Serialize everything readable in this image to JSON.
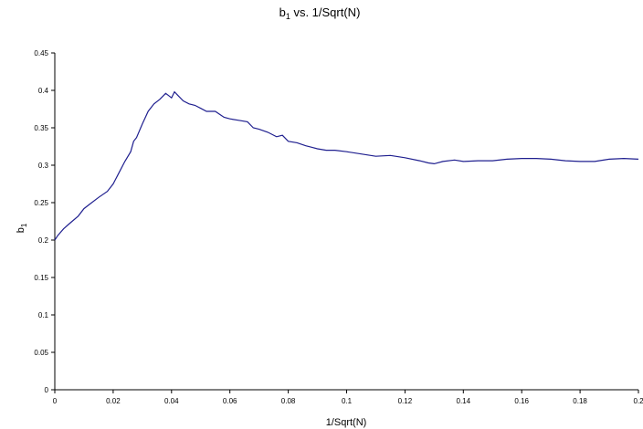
{
  "chart_data": {
    "type": "line",
    "title": "b",
    "title_sub": "1",
    "title_rest": " vs. 1/Sqrt(N)",
    "xlabel": "1/Sqrt(N)",
    "ylabel": "b",
    "ylabel_sub": "1",
    "xlim": [
      0,
      0.2
    ],
    "ylim": [
      0,
      0.45
    ],
    "xticks": [
      "0",
      "0.02",
      "0.04",
      "0.06",
      "0.08",
      "0.1",
      "0.12",
      "0.14",
      "0.16",
      "0.18",
      "0.2"
    ],
    "yticks": [
      "0",
      "0.05",
      "0.1",
      "0.15",
      "0.2",
      "0.25",
      "0.3",
      "0.35",
      "0.4",
      "0.45"
    ],
    "grid": false,
    "line_color": "#1f1f8f",
    "series": [
      {
        "x": [
          0,
          0.001,
          0.003,
          0.005,
          0.008,
          0.01,
          0.012,
          0.015,
          0.018,
          0.02,
          0.022,
          0.024,
          0.026,
          0.027,
          0.028,
          0.03,
          0.032,
          0.034,
          0.036,
          0.038,
          0.039,
          0.04,
          0.041,
          0.042,
          0.044,
          0.046,
          0.048,
          0.05,
          0.052,
          0.055,
          0.058,
          0.06,
          0.063,
          0.066,
          0.068,
          0.07,
          0.073,
          0.076,
          0.078,
          0.08,
          0.083,
          0.086,
          0.088,
          0.09,
          0.093,
          0.096,
          0.1,
          0.105,
          0.11,
          0.115,
          0.12,
          0.125,
          0.128,
          0.13,
          0.133,
          0.137,
          0.14,
          0.145,
          0.15,
          0.155,
          0.16,
          0.165,
          0.17,
          0.175,
          0.18,
          0.185,
          0.19,
          0.195,
          0.2
        ],
        "y": [
          0.2,
          0.206,
          0.215,
          0.222,
          0.232,
          0.242,
          0.248,
          0.257,
          0.265,
          0.275,
          0.29,
          0.305,
          0.318,
          0.332,
          0.337,
          0.355,
          0.372,
          0.382,
          0.388,
          0.396,
          0.393,
          0.39,
          0.398,
          0.394,
          0.386,
          0.382,
          0.38,
          0.376,
          0.372,
          0.372,
          0.364,
          0.362,
          0.36,
          0.358,
          0.35,
          0.348,
          0.344,
          0.338,
          0.34,
          0.332,
          0.33,
          0.326,
          0.324,
          0.322,
          0.32,
          0.32,
          0.318,
          0.315,
          0.312,
          0.313,
          0.31,
          0.306,
          0.303,
          0.302,
          0.305,
          0.307,
          0.305,
          0.306,
          0.306,
          0.308,
          0.309,
          0.309,
          0.308,
          0.306,
          0.305,
          0.305,
          0.308,
          0.309,
          0.308
        ]
      }
    ]
  }
}
